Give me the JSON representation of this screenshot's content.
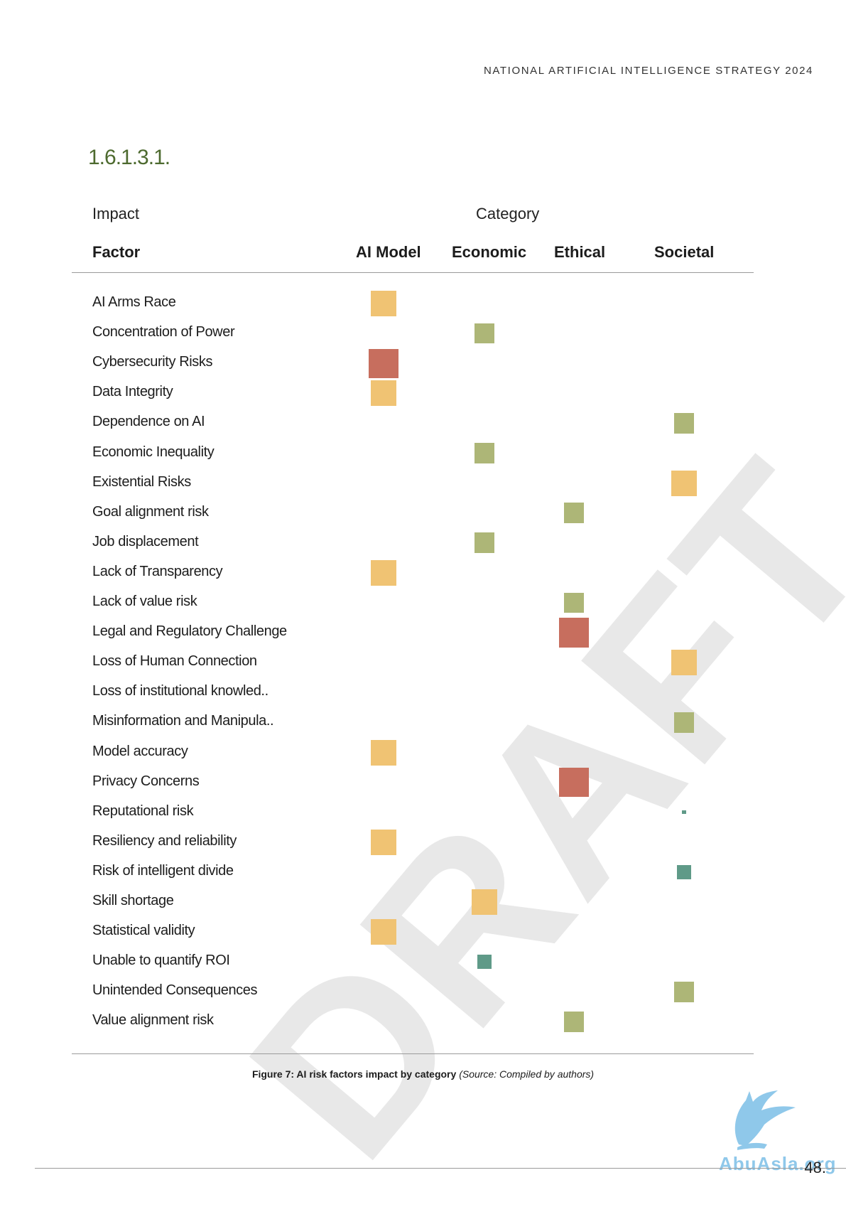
{
  "header": {
    "title": "NATIONAL ARTIFICIAL INTELLIGENCE STRATEGY 2024"
  },
  "section": {
    "number": "1.6.1.3.1."
  },
  "table": {
    "impact_label": "Impact",
    "category_label": "Category",
    "factor_label": "Factor",
    "columns": [
      "AI Model",
      "Economic",
      "Ethical",
      "Societal"
    ],
    "colors": {
      "orange": "#f0c373",
      "green": "#adb677",
      "red": "#c76e5e",
      "teal": "#5f9a88"
    },
    "rows": [
      {
        "factor": "AI Arms Race",
        "category": "AI Model",
        "color": "orange",
        "magnitude": 1.0
      },
      {
        "factor": "Concentration of Power",
        "category": "Economic",
        "color": "green",
        "magnitude": 0.8
      },
      {
        "factor": "Cybersecurity Risks",
        "category": "AI Model",
        "color": "red",
        "magnitude": 1.15
      },
      {
        "factor": "Data Integrity",
        "category": "AI Model",
        "color": "orange",
        "magnitude": 1.0
      },
      {
        "factor": "Dependence on AI",
        "category": "Societal",
        "color": "green",
        "magnitude": 0.8
      },
      {
        "factor": "Economic Inequality",
        "category": "Economic",
        "color": "green",
        "magnitude": 0.8
      },
      {
        "factor": "Existential Risks",
        "category": "Societal",
        "color": "orange",
        "magnitude": 1.0
      },
      {
        "factor": "Goal alignment risk",
        "category": "Ethical",
        "color": "green",
        "magnitude": 0.8
      },
      {
        "factor": "Job displacement",
        "category": "Economic",
        "color": "green",
        "magnitude": 0.8
      },
      {
        "factor": "Lack of Transparency",
        "category": "AI Model",
        "color": "orange",
        "magnitude": 1.0
      },
      {
        "factor": "Lack of value risk",
        "category": "Ethical",
        "color": "green",
        "magnitude": 0.8
      },
      {
        "factor": "Legal and Regulatory Challenge",
        "category": "Ethical",
        "color": "red",
        "magnitude": 1.15
      },
      {
        "factor": "Loss of Human Connection",
        "category": "Societal",
        "color": "orange",
        "magnitude": 1.0
      },
      {
        "factor": "Loss of institutional knowled..",
        "category": null,
        "color": null,
        "magnitude": 0
      },
      {
        "factor": "Misinformation and Manipula..",
        "category": "Societal",
        "color": "green",
        "magnitude": 0.8
      },
      {
        "factor": "Model accuracy",
        "category": "AI Model",
        "color": "orange",
        "magnitude": 1.0
      },
      {
        "factor": "Privacy Concerns",
        "category": "Ethical",
        "color": "red",
        "magnitude": 1.15
      },
      {
        "factor": "Reputational risk",
        "category": "Societal",
        "color": "teal",
        "magnitude": 0.15
      },
      {
        "factor": "Resiliency and reliability",
        "category": "AI Model",
        "color": "orange",
        "magnitude": 1.0
      },
      {
        "factor": "Risk of intelligent divide",
        "category": "Societal",
        "color": "teal",
        "magnitude": 0.55
      },
      {
        "factor": "Skill shortage",
        "category": "Economic",
        "color": "orange",
        "magnitude": 1.0
      },
      {
        "factor": "Statistical validity",
        "category": "AI Model",
        "color": "orange",
        "magnitude": 1.0
      },
      {
        "factor": "Unable to quantify ROI",
        "category": "Economic",
        "color": "teal",
        "magnitude": 0.55
      },
      {
        "factor": "Unintended Consequences",
        "category": "Societal",
        "color": "green",
        "magnitude": 0.8
      },
      {
        "factor": "Value alignment risk",
        "category": "Ethical",
        "color": "green",
        "magnitude": 0.8
      }
    ]
  },
  "caption": {
    "bold": "Figure 7: AI risk factors impact by category",
    "italic": "(Source:  Compiled by authors)"
  },
  "watermark": "DRAFT",
  "logo_text": "AbuAsla.org",
  "page_number": "48."
}
